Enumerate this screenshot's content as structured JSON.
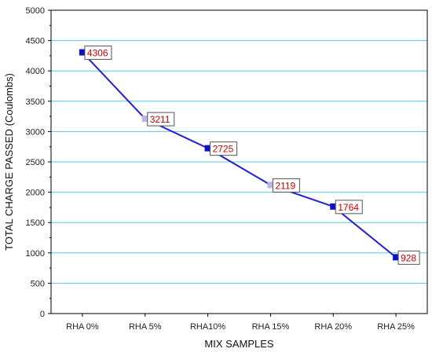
{
  "chart_data": {
    "type": "line",
    "title": "",
    "xlabel": "MIX SAMPLES",
    "ylabel": "TOTAL CHARGE PASSED (Coulombs)",
    "categories": [
      "RHA 0%",
      "RHA 5%",
      "RHA10%",
      "RHA 15%",
      "RHA 20%",
      "RHA 25%"
    ],
    "series": [
      {
        "values": [
          4306,
          3211,
          2725,
          2119,
          1764,
          928
        ]
      }
    ],
    "data_labels": [
      "4306",
      "3211",
      "2725",
      "2119",
      "1764",
      "928"
    ],
    "ylim": [
      0,
      5000
    ],
    "yticks": [
      0,
      500,
      1000,
      1500,
      2000,
      2500,
      3000,
      3500,
      4000,
      4500,
      5000
    ],
    "grid": "horizontal",
    "legend": "none",
    "colors": {
      "line": "#1f1fd6",
      "marker": "#1010cc",
      "marker_light": "#b8b8e8",
      "grid": "#59c8e6",
      "label_text": "#cc0000",
      "label_box_border": "#555555",
      "label_box_fill": "#ffffff"
    }
  }
}
